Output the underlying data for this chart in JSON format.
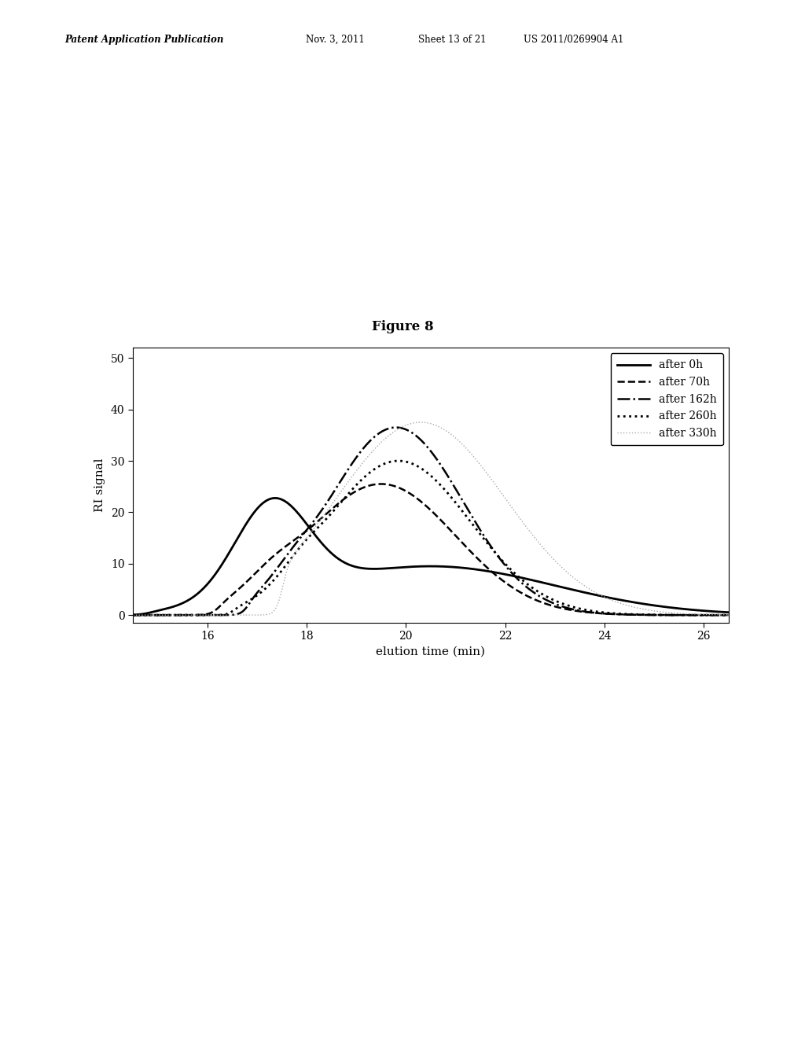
{
  "title": "Figure 8",
  "xlabel": "elution time (min)",
  "ylabel": "RI signal",
  "xlim": [
    14.5,
    26.5
  ],
  "ylim": [
    -1.5,
    52
  ],
  "xticks": [
    16,
    18,
    20,
    22,
    24,
    26
  ],
  "yticks": [
    0,
    10,
    20,
    30,
    40,
    50
  ],
  "header_left": "Patent Application Publication",
  "header_mid1": "Nov. 3, 2011",
  "header_mid2": "Sheet 13 of 21",
  "header_right": "US 2011/0269904 A1",
  "curves": [
    {
      "label": "after 0h",
      "linestyle": "solid",
      "linewidth": 2.0,
      "color": "#000000"
    },
    {
      "label": "after 70h",
      "linestyle": "dashed",
      "linewidth": 1.8,
      "color": "#000000"
    },
    {
      "label": "after 162h",
      "linestyle": "dashdot",
      "linewidth": 1.8,
      "color": "#000000"
    },
    {
      "label": "after 260h",
      "linestyle": "dotted",
      "linewidth": 2.0,
      "color": "#000000"
    },
    {
      "label": "after 330h",
      "linestyle": "dotted",
      "linewidth": 1.0,
      "color": "#aaaaaa"
    }
  ]
}
